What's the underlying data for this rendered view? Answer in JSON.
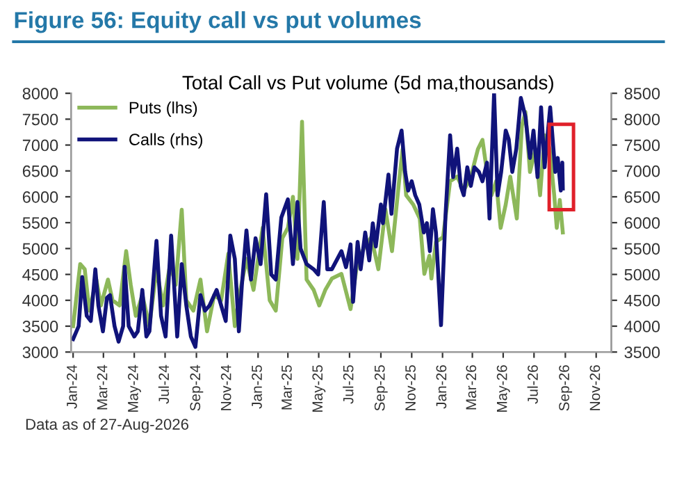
{
  "chart_data": {
    "type": "line",
    "title": "Figure 56: Equity call vs put volumes",
    "subtitle": "Total Call vs Put volume (5d ma,thousands)",
    "annotations": [
      "Data as of 27-Aug-2026"
    ],
    "xlim": [
      "2023-12-28",
      "2026-12-01"
    ],
    "xticks": [
      {
        "value": "2024-01-01",
        "label": "Jan-24"
      },
      {
        "value": "2024-03-01",
        "label": "Mar-24"
      },
      {
        "value": "2024-05-01",
        "label": "May-24"
      },
      {
        "value": "2024-07-01",
        "label": "Jul-24"
      },
      {
        "value": "2024-09-01",
        "label": "Sep-24"
      },
      {
        "value": "2024-11-01",
        "label": "Nov-24"
      },
      {
        "value": "2025-01-01",
        "label": "Jan-25"
      },
      {
        "value": "2025-03-01",
        "label": "Mar-25"
      },
      {
        "value": "2025-05-01",
        "label": "May-25"
      },
      {
        "value": "2025-07-01",
        "label": "Jul-25"
      },
      {
        "value": "2025-09-01",
        "label": "Sep-25"
      },
      {
        "value": "2025-11-01",
        "label": "Nov-25"
      },
      {
        "value": "2026-01-01",
        "label": "Jan-26"
      },
      {
        "value": "2026-03-01",
        "label": "Mar-26"
      },
      {
        "value": "2026-05-01",
        "label": "May-26"
      },
      {
        "value": "2026-07-01",
        "label": "Jul-26"
      },
      {
        "value": "2026-09-01",
        "label": "Sep-26"
      },
      {
        "value": "2026-11-01",
        "label": "Nov-26"
      }
    ],
    "ylim": [
      3000,
      8000
    ],
    "yticks": [
      3000,
      3500,
      4000,
      4500,
      5000,
      5500,
      6000,
      6500,
      7000,
      7500,
      8000
    ],
    "y2lim": [
      3500,
      8500
    ],
    "y2ticks": [
      3500,
      4000,
      4500,
      5000,
      5500,
      6000,
      6500,
      7000,
      7500,
      8000,
      8500
    ],
    "legend": "top left",
    "grid": false,
    "line_style": "solid",
    "series": [
      {
        "name": "Puts (lhs)",
        "color": "#8db85a",
        "axis": "y",
        "x": [
          "2024-01-01",
          "2024-01-15",
          "2024-01-24",
          "2024-02-02",
          "2024-02-16",
          "2024-02-25",
          "2024-03-10",
          "2024-03-19",
          "2024-04-02",
          "2024-04-15",
          "2024-04-24",
          "2024-05-04",
          "2024-05-17",
          "2024-05-31",
          "2024-06-14",
          "2024-06-27",
          "2024-07-11",
          "2024-07-22",
          "2024-08-03",
          "2024-08-12",
          "2024-08-26",
          "2024-09-09",
          "2024-09-22",
          "2024-10-06",
          "2024-10-20",
          "2024-11-03",
          "2024-11-16",
          "2024-11-25",
          "2024-12-09",
          "2024-12-23",
          "2025-01-10",
          "2025-01-24",
          "2025-02-05",
          "2025-02-18",
          "2025-03-01",
          "2025-03-11",
          "2025-03-20",
          "2025-03-29",
          "2025-04-07",
          "2025-04-21",
          "2025-05-02",
          "2025-05-14",
          "2025-05-27",
          "2025-06-15",
          "2025-07-03",
          "2025-07-17",
          "2025-07-31",
          "2025-08-13",
          "2025-08-27",
          "2025-09-10",
          "2025-09-23",
          "2025-10-07",
          "2025-10-14",
          "2025-10-21",
          "2025-11-04",
          "2025-11-17",
          "2025-11-26",
          "2025-12-06",
          "2025-12-10",
          "2025-12-19",
          "2026-01-02",
          "2026-01-16",
          "2026-01-30",
          "2026-02-12",
          "2026-02-26",
          "2026-03-12",
          "2026-03-21",
          "2026-03-30",
          "2026-04-08",
          "2026-04-17",
          "2026-04-26",
          "2026-05-06",
          "2026-05-15",
          "2026-05-28",
          "2026-06-07",
          "2026-06-14",
          "2026-06-23",
          "2026-07-04",
          "2026-07-13",
          "2026-07-22",
          "2026-08-01",
          "2026-08-10",
          "2026-08-15",
          "2026-08-21",
          "2026-08-27"
        ],
        "values": [
          3500,
          4700,
          4600,
          3800,
          4400,
          3900,
          4400,
          4000,
          3900,
          4950,
          4300,
          3700,
          4100,
          3500,
          4600,
          3900,
          4700,
          4300,
          5750,
          4000,
          3800,
          4400,
          3400,
          4100,
          4000,
          4900,
          3500,
          4100,
          4800,
          4200,
          5400,
          4000,
          3800,
          5200,
          5400,
          6000,
          4800,
          7450,
          4400,
          4200,
          3900,
          4200,
          4420,
          4510,
          3830,
          4770,
          5040,
          5220,
          4600,
          5760,
          4950,
          6300,
          6920,
          6030,
          5850,
          5580,
          4510,
          4860,
          4420,
          5130,
          5220,
          6300,
          6390,
          6120,
          6390,
          6920,
          7100,
          6480,
          6030,
          6300,
          5400,
          5850,
          6390,
          5580,
          7370,
          7640,
          6480,
          6920,
          6030,
          7190,
          6920,
          6030,
          5400,
          5940,
          5310
        ]
      },
      {
        "name": "Calls (rhs)",
        "color": "#10137a",
        "axis": "y2",
        "x": [
          "2024-01-01",
          "2024-01-12",
          "2024-01-19",
          "2024-01-28",
          "2024-02-05",
          "2024-02-14",
          "2024-02-20",
          "2024-02-29",
          "2024-03-08",
          "2024-03-14",
          "2024-03-23",
          "2024-03-31",
          "2024-04-09",
          "2024-04-12",
          "2024-04-20",
          "2024-05-01",
          "2024-05-08",
          "2024-05-17",
          "2024-05-25",
          "2024-05-31",
          "2024-06-14",
          "2024-06-23",
          "2024-07-02",
          "2024-07-13",
          "2024-07-25",
          "2024-08-03",
          "2024-08-12",
          "2024-08-21",
          "2024-08-30",
          "2024-09-09",
          "2024-09-18",
          "2024-09-27",
          "2024-10-11",
          "2024-10-20",
          "2024-10-29",
          "2024-11-07",
          "2024-11-16",
          "2024-11-24",
          "2024-11-30",
          "2024-12-09",
          "2024-12-18",
          "2024-12-27",
          "2025-01-06",
          "2025-01-17",
          "2025-01-27",
          "2025-02-05",
          "2025-02-16",
          "2025-03-01",
          "2025-03-11",
          "2025-03-20",
          "2025-03-26",
          "2025-04-07",
          "2025-04-21",
          "2025-04-30",
          "2025-05-11",
          "2025-05-18",
          "2025-05-27",
          "2025-06-15",
          "2025-06-24",
          "2025-07-03",
          "2025-07-08",
          "2025-07-17",
          "2025-07-23",
          "2025-08-01",
          "2025-08-09",
          "2025-08-16",
          "2025-08-22",
          "2025-09-01",
          "2025-09-05",
          "2025-09-16",
          "2025-09-22",
          "2025-10-03",
          "2025-10-12",
          "2025-10-19",
          "2025-10-25",
          "2025-11-01",
          "2025-11-08",
          "2025-11-16",
          "2025-11-25",
          "2025-12-01",
          "2025-12-07",
          "2025-12-13",
          "2025-12-19",
          "2025-12-29",
          "2026-01-07",
          "2026-01-16",
          "2026-01-22",
          "2026-01-30",
          "2026-02-06",
          "2026-02-12",
          "2026-02-19",
          "2026-02-26",
          "2026-03-05",
          "2026-03-14",
          "2026-03-21",
          "2026-03-30",
          "2026-04-04",
          "2026-04-13",
          "2026-04-20",
          "2026-04-27",
          "2026-05-06",
          "2026-05-12",
          "2026-05-19",
          "2026-05-27",
          "2026-06-05",
          "2026-06-14",
          "2026-06-23",
          "2026-06-30",
          "2026-07-08",
          "2026-07-15",
          "2026-07-22",
          "2026-08-02",
          "2026-08-12",
          "2026-08-17",
          "2026-08-23",
          "2026-08-26",
          "2026-08-27"
        ],
        "values": [
          3750,
          4000,
          4950,
          4200,
          4100,
          5100,
          4400,
          3900,
          4550,
          4600,
          4000,
          3700,
          4000,
          5150,
          4000,
          3800,
          3900,
          4700,
          3800,
          3900,
          5650,
          4200,
          3800,
          5750,
          3800,
          5200,
          4400,
          3800,
          3600,
          4600,
          4300,
          4400,
          4700,
          4400,
          4100,
          5750,
          5300,
          3900,
          4800,
          5850,
          4900,
          5700,
          5200,
          6550,
          5000,
          4900,
          6100,
          6450,
          5200,
          6400,
          5500,
          5200,
          5100,
          5000,
          6400,
          5100,
          5100,
          5450,
          5140,
          5580,
          4470,
          5630,
          5100,
          5810,
          5270,
          5990,
          5540,
          6350,
          5990,
          6930,
          6170,
          7430,
          7780,
          6980,
          6620,
          6800,
          6530,
          6350,
          5810,
          5990,
          5450,
          6260,
          5810,
          4020,
          6170,
          7690,
          6880,
          7430,
          6710,
          6530,
          7070,
          6710,
          7070,
          6980,
          6800,
          7160,
          6080,
          8500,
          6530,
          6980,
          7780,
          7610,
          6980,
          7430,
          8410,
          8050,
          7250,
          7780,
          6880,
          8230,
          7070,
          8230,
          6980,
          7250,
          6620,
          7160,
          6660
        ]
      }
    ]
  }
}
